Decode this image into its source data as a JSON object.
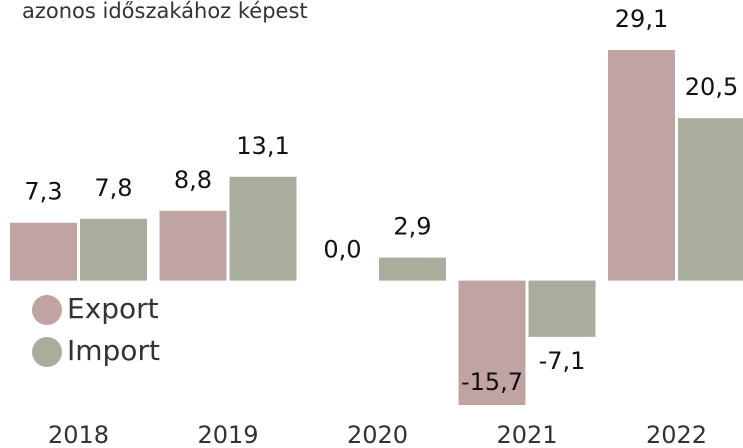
{
  "chart_data": {
    "type": "bar",
    "subtitle": "azonos időszakához képest",
    "categories": [
      "2018",
      "2019",
      "2020",
      "2021",
      "2022"
    ],
    "series": [
      {
        "name": "Export",
        "color": "#c0a4a3",
        "values": [
          7.3,
          8.8,
          0.0,
          -15.7,
          29.1
        ],
        "value_labels": [
          "7,3",
          "8,8",
          "0,0",
          "-15,7",
          "29,1"
        ]
      },
      {
        "name": "Import",
        "color": "#a9ad9b",
        "values": [
          7.8,
          13.1,
          2.9,
          -7.1,
          20.5
        ],
        "value_labels": [
          "7,8",
          "13,1",
          "2,9",
          "-7,1",
          "20,5"
        ]
      }
    ],
    "legend": "left"
  }
}
